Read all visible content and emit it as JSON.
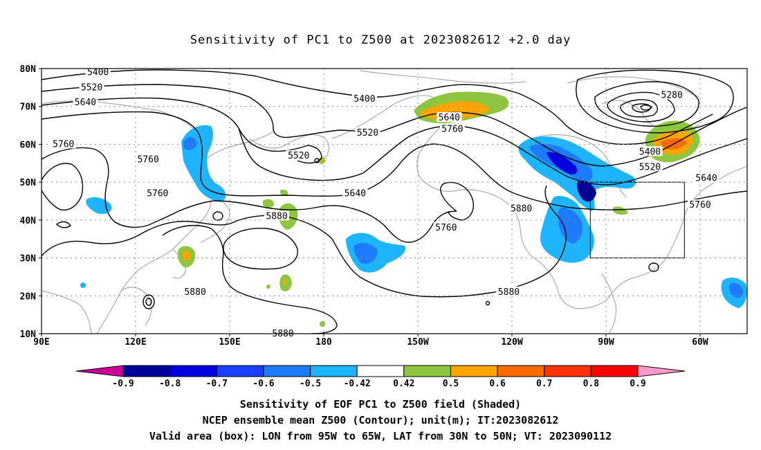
{
  "title": "Sensitivity of PC1 to Z500 at 2023082612 +2.0 day",
  "map": {
    "lat_labels": [
      "80N",
      "70N",
      "60N",
      "50N",
      "40N",
      "30N",
      "20N",
      "10N"
    ],
    "lon_labels": [
      "90E",
      "120E",
      "150E",
      "180",
      "150W",
      "120W",
      "90W",
      "60W"
    ],
    "contour_labels": [
      {
        "text": "5400",
        "lon": 108,
        "lat": 79
      },
      {
        "text": "5520",
        "lon": 106,
        "lat": 75
      },
      {
        "text": "5640",
        "lon": 104,
        "lat": 71
      },
      {
        "text": "5760",
        "lon": 97,
        "lat": 60
      },
      {
        "text": "5760",
        "lon": 124,
        "lat": 56
      },
      {
        "text": "5760",
        "lon": 127,
        "lat": 47
      },
      {
        "text": "5880",
        "lon": 165,
        "lat": 41
      },
      {
        "text": "5880",
        "lon": 139,
        "lat": 21
      },
      {
        "text": "5880",
        "lon": 167,
        "lat": 10
      },
      {
        "text": "5400",
        "lon": 193,
        "lat": 72
      },
      {
        "text": "5520",
        "lon": 194,
        "lat": 63
      },
      {
        "text": "5520",
        "lon": 172,
        "lat": 57
      },
      {
        "text": "5640",
        "lon": 190,
        "lat": 47
      },
      {
        "text": "5640",
        "lon": 220,
        "lat": 67
      },
      {
        "text": "5760",
        "lon": 221,
        "lat": 64
      },
      {
        "text": "5760",
        "lon": 219,
        "lat": 38
      },
      {
        "text": "5880",
        "lon": 243,
        "lat": 43
      },
      {
        "text": "5880",
        "lon": 239,
        "lat": 21
      },
      {
        "text": "5280",
        "lon": 291,
        "lat": 73
      },
      {
        "text": "5400",
        "lon": 284,
        "lat": 58
      },
      {
        "text": "5520",
        "lon": 284,
        "lat": 54
      },
      {
        "text": "5640",
        "lon": 302,
        "lat": 51
      },
      {
        "text": "5760",
        "lon": 300,
        "lat": 44
      }
    ],
    "valid_box": {
      "lon_west": -95,
      "lon_east": -65,
      "lat_south": 30,
      "lat_north": 50
    }
  },
  "colorbar": {
    "labels": [
      "-0.9",
      "-0.8",
      "-0.7",
      "-0.6",
      "-0.5",
      "-0.42",
      "0.42",
      "0.5",
      "0.6",
      "0.7",
      "0.8",
      "0.9"
    ],
    "colors": [
      "#000099",
      "#0000dd",
      "#1a3fff",
      "#1e7bff",
      "#1eb4ff",
      "#ffffff",
      "#8ec63f",
      "#ffa500",
      "#ff6a00",
      "#ff3300",
      "#ff0000"
    ],
    "low_extend_color": "#cc0099",
    "high_extend_color": "#ff99cc"
  },
  "captions": {
    "line1": "Sensitivity of EOF PC1 to Z500 field (Shaded)",
    "line2": "NCEP ensemble mean Z500 (Contour); unit(m); IT:2023082612",
    "line3": "Valid area (box): LON from 95W to 65W, LAT from 30N to 50N; VT: 2023090112"
  }
}
